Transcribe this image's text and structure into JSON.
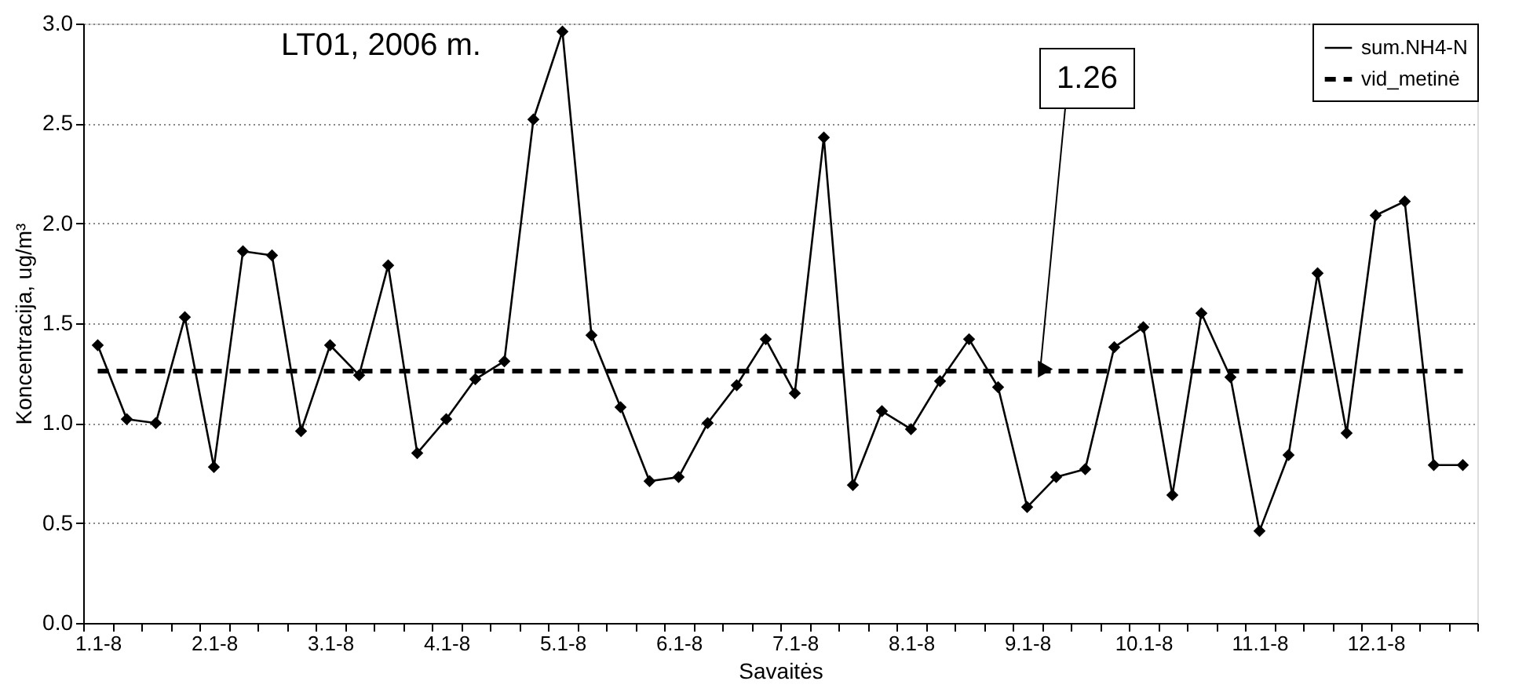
{
  "chart_data": {
    "type": "line",
    "title": "LT01, 2006 m.",
    "xlabel": "Savaitės",
    "ylabel": "Koncentracija, ug/m³",
    "categories": [
      "1.1-8",
      null,
      null,
      null,
      "2.1-8",
      null,
      null,
      null,
      "3.1-8",
      null,
      null,
      null,
      "4.1-8",
      null,
      null,
      null,
      "5.1-8",
      null,
      null,
      null,
      "6.1-8",
      null,
      null,
      null,
      "7.1-8",
      null,
      null,
      null,
      "8.1-8",
      null,
      null,
      null,
      "9.1-8",
      null,
      null,
      null,
      "10.1-8",
      null,
      null,
      null,
      "11.1-8",
      null,
      null,
      null,
      "12.1-8",
      null,
      null,
      null
    ],
    "series": [
      {
        "name": "sum.NH4-N",
        "color": "#000000",
        "marker": "diamond",
        "line_style": "solid",
        "values": [
          1.39,
          1.02,
          1.0,
          1.53,
          0.78,
          1.86,
          1.84,
          0.96,
          1.39,
          1.24,
          1.79,
          0.85,
          1.02,
          1.22,
          1.31,
          2.52,
          2.96,
          1.44,
          1.08,
          0.71,
          0.73,
          1.0,
          1.19,
          1.42,
          1.15,
          2.43,
          0.69,
          1.06,
          0.97,
          1.21,
          1.42,
          1.18,
          0.58,
          0.73,
          0.77,
          1.38,
          1.48,
          0.64,
          1.55,
          1.23,
          0.46,
          0.84,
          1.75,
          0.95,
          2.04,
          2.11,
          0.79,
          0.79
        ]
      },
      {
        "name": "vid_metinė",
        "color": "#000000",
        "marker": "none",
        "line_style": "dashed",
        "values": [
          1.26,
          1.26,
          1.26,
          1.26,
          1.26,
          1.26,
          1.26,
          1.26,
          1.26,
          1.26,
          1.26,
          1.26,
          1.26,
          1.26,
          1.26,
          1.26,
          1.26,
          1.26,
          1.26,
          1.26,
          1.26,
          1.26,
          1.26,
          1.26,
          1.26,
          1.26,
          1.26,
          1.26,
          1.26,
          1.26,
          1.26,
          1.26,
          1.26,
          1.26,
          1.26,
          1.26,
          1.26,
          1.26,
          1.26,
          1.26,
          1.26,
          1.26,
          1.26,
          1.26,
          1.26,
          1.26,
          1.26,
          1.26
        ]
      }
    ],
    "annotations": [
      "1.26"
    ],
    "ylim": [
      0,
      3.0
    ],
    "yticks": [
      {
        "value": 0,
        "label": "0.0"
      },
      {
        "value": 0.5,
        "label": "0.5"
      },
      {
        "value": 1,
        "label": "1.0"
      },
      {
        "value": 1.5,
        "label": "1.5"
      },
      {
        "value": 2,
        "label": "2.0"
      },
      {
        "value": 2.5,
        "label": "2.5"
      },
      {
        "value": 3,
        "label": "3.0"
      }
    ],
    "grid": "y",
    "legend": "top right"
  }
}
